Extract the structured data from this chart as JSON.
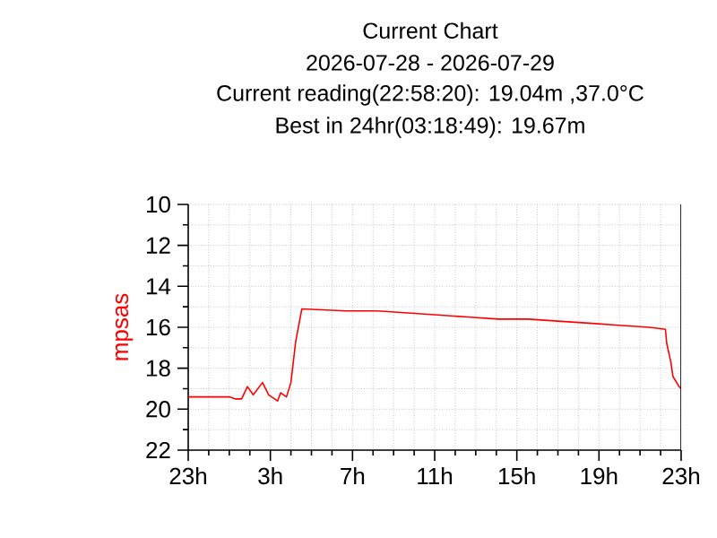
{
  "chart_data": {
    "type": "line",
    "title": "Current Chart",
    "subtitle": "2026-07-28 - 2026-07-29",
    "annotations": [
      "Current reading(22:58:20):  19.04m ,37.0°C",
      "Best in 24hr(03:18:49):  19.67m"
    ],
    "ylabel": "mpsas",
    "x": [
      "2026-07-28T23:00",
      "2026-07-29T00:00",
      "2026-07-29T01:00",
      "2026-07-29T01:18",
      "2026-07-29T01:36",
      "2026-07-29T01:53",
      "2026-07-29T02:10",
      "2026-07-29T02:37",
      "2026-07-29T02:55",
      "2026-07-29T03:21",
      "2026-07-29T03:30",
      "2026-07-29T03:47",
      "2026-07-29T04:00",
      "2026-07-29T04:14",
      "2026-07-29T04:23",
      "2026-07-29T04:32",
      "2026-07-29T06:42",
      "2026-07-29T08:12",
      "2026-07-29T09:42",
      "2026-07-29T11:09",
      "2026-07-29T12:36",
      "2026-07-29T14:06",
      "2026-07-29T15:33",
      "2026-07-29T17:00",
      "2026-07-29T18:30",
      "2026-07-29T19:58",
      "2026-07-29T21:27",
      "2026-07-29T22:14",
      "2026-07-29T22:18",
      "2026-07-29T22:30",
      "2026-07-29T22:36",
      "2026-07-29T22:54",
      "2026-07-29T23:00"
    ],
    "series": [
      {
        "color": "#ff0000",
        "values": [
          19.4,
          19.4,
          19.4,
          19.5,
          19.5,
          18.9,
          19.3,
          18.7,
          19.3,
          19.6,
          19.2,
          19.4,
          18.7,
          16.7,
          15.9,
          15.1,
          15.2,
          15.2,
          15.3,
          15.4,
          15.5,
          15.6,
          15.6,
          15.7,
          15.8,
          15.9,
          16.0,
          16.1,
          16.8,
          17.7,
          18.4,
          18.9,
          19.0
        ]
      }
    ],
    "xlim": [
      "2026-07-28T23:00",
      "2026-07-29T23:00"
    ],
    "ylim": [
      22,
      10
    ],
    "xticks": [
      {
        "value": "2026-07-28T23:00",
        "label": "23h"
      },
      {
        "value": "2026-07-29T03:00",
        "label": "3h"
      },
      {
        "value": "2026-07-29T07:00",
        "label": "7h"
      },
      {
        "value": "2026-07-29T11:00",
        "label": "11h"
      },
      {
        "value": "2026-07-29T15:00",
        "label": "15h"
      },
      {
        "value": "2026-07-29T19:00",
        "label": "19h"
      },
      {
        "value": "2026-07-29T23:00",
        "label": "23h"
      }
    ],
    "yticks": [
      10,
      12,
      14,
      16,
      18,
      20,
      22
    ],
    "grid": true,
    "marker": "none",
    "line_style": "solid"
  }
}
